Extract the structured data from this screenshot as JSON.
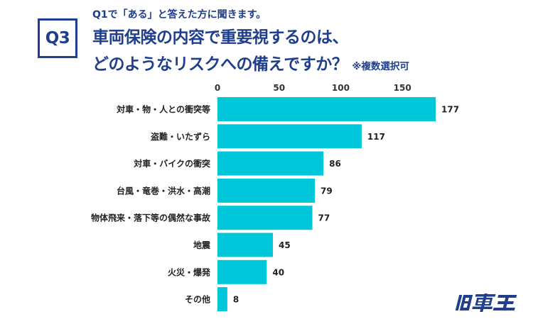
{
  "header": {
    "badge": "Q3",
    "subtitle": "Q1で「ある」と答えた方に聞きます。",
    "title_line1": "車両保険の内容で重要視するのは、",
    "title_line2": "どのようなリスクへの備えですか？",
    "note": "※複数選択可"
  },
  "logo": {
    "text": "旧車王",
    "color": "#1f3e8c"
  },
  "colors": {
    "bar": "#00c6d9",
    "axis_text": "#333333",
    "label_text": "#222222"
  },
  "chart_data": {
    "type": "bar",
    "orientation": "horizontal",
    "categories": [
      "対車・物・人との衝突等",
      "盗難・いたずら",
      "対車・バイクの衝突",
      "台風・竜巻・洪水・高潮",
      "物体飛来・落下等の偶然な事故",
      "地震",
      "火災・爆発",
      "その他"
    ],
    "values": [
      177,
      117,
      86,
      79,
      77,
      45,
      40,
      8
    ],
    "x_ticks": [
      0,
      50,
      100,
      150
    ],
    "xlim": [
      0,
      177
    ],
    "title": "",
    "xlabel": "",
    "ylabel": "",
    "legend": "none",
    "data_labels": true
  }
}
